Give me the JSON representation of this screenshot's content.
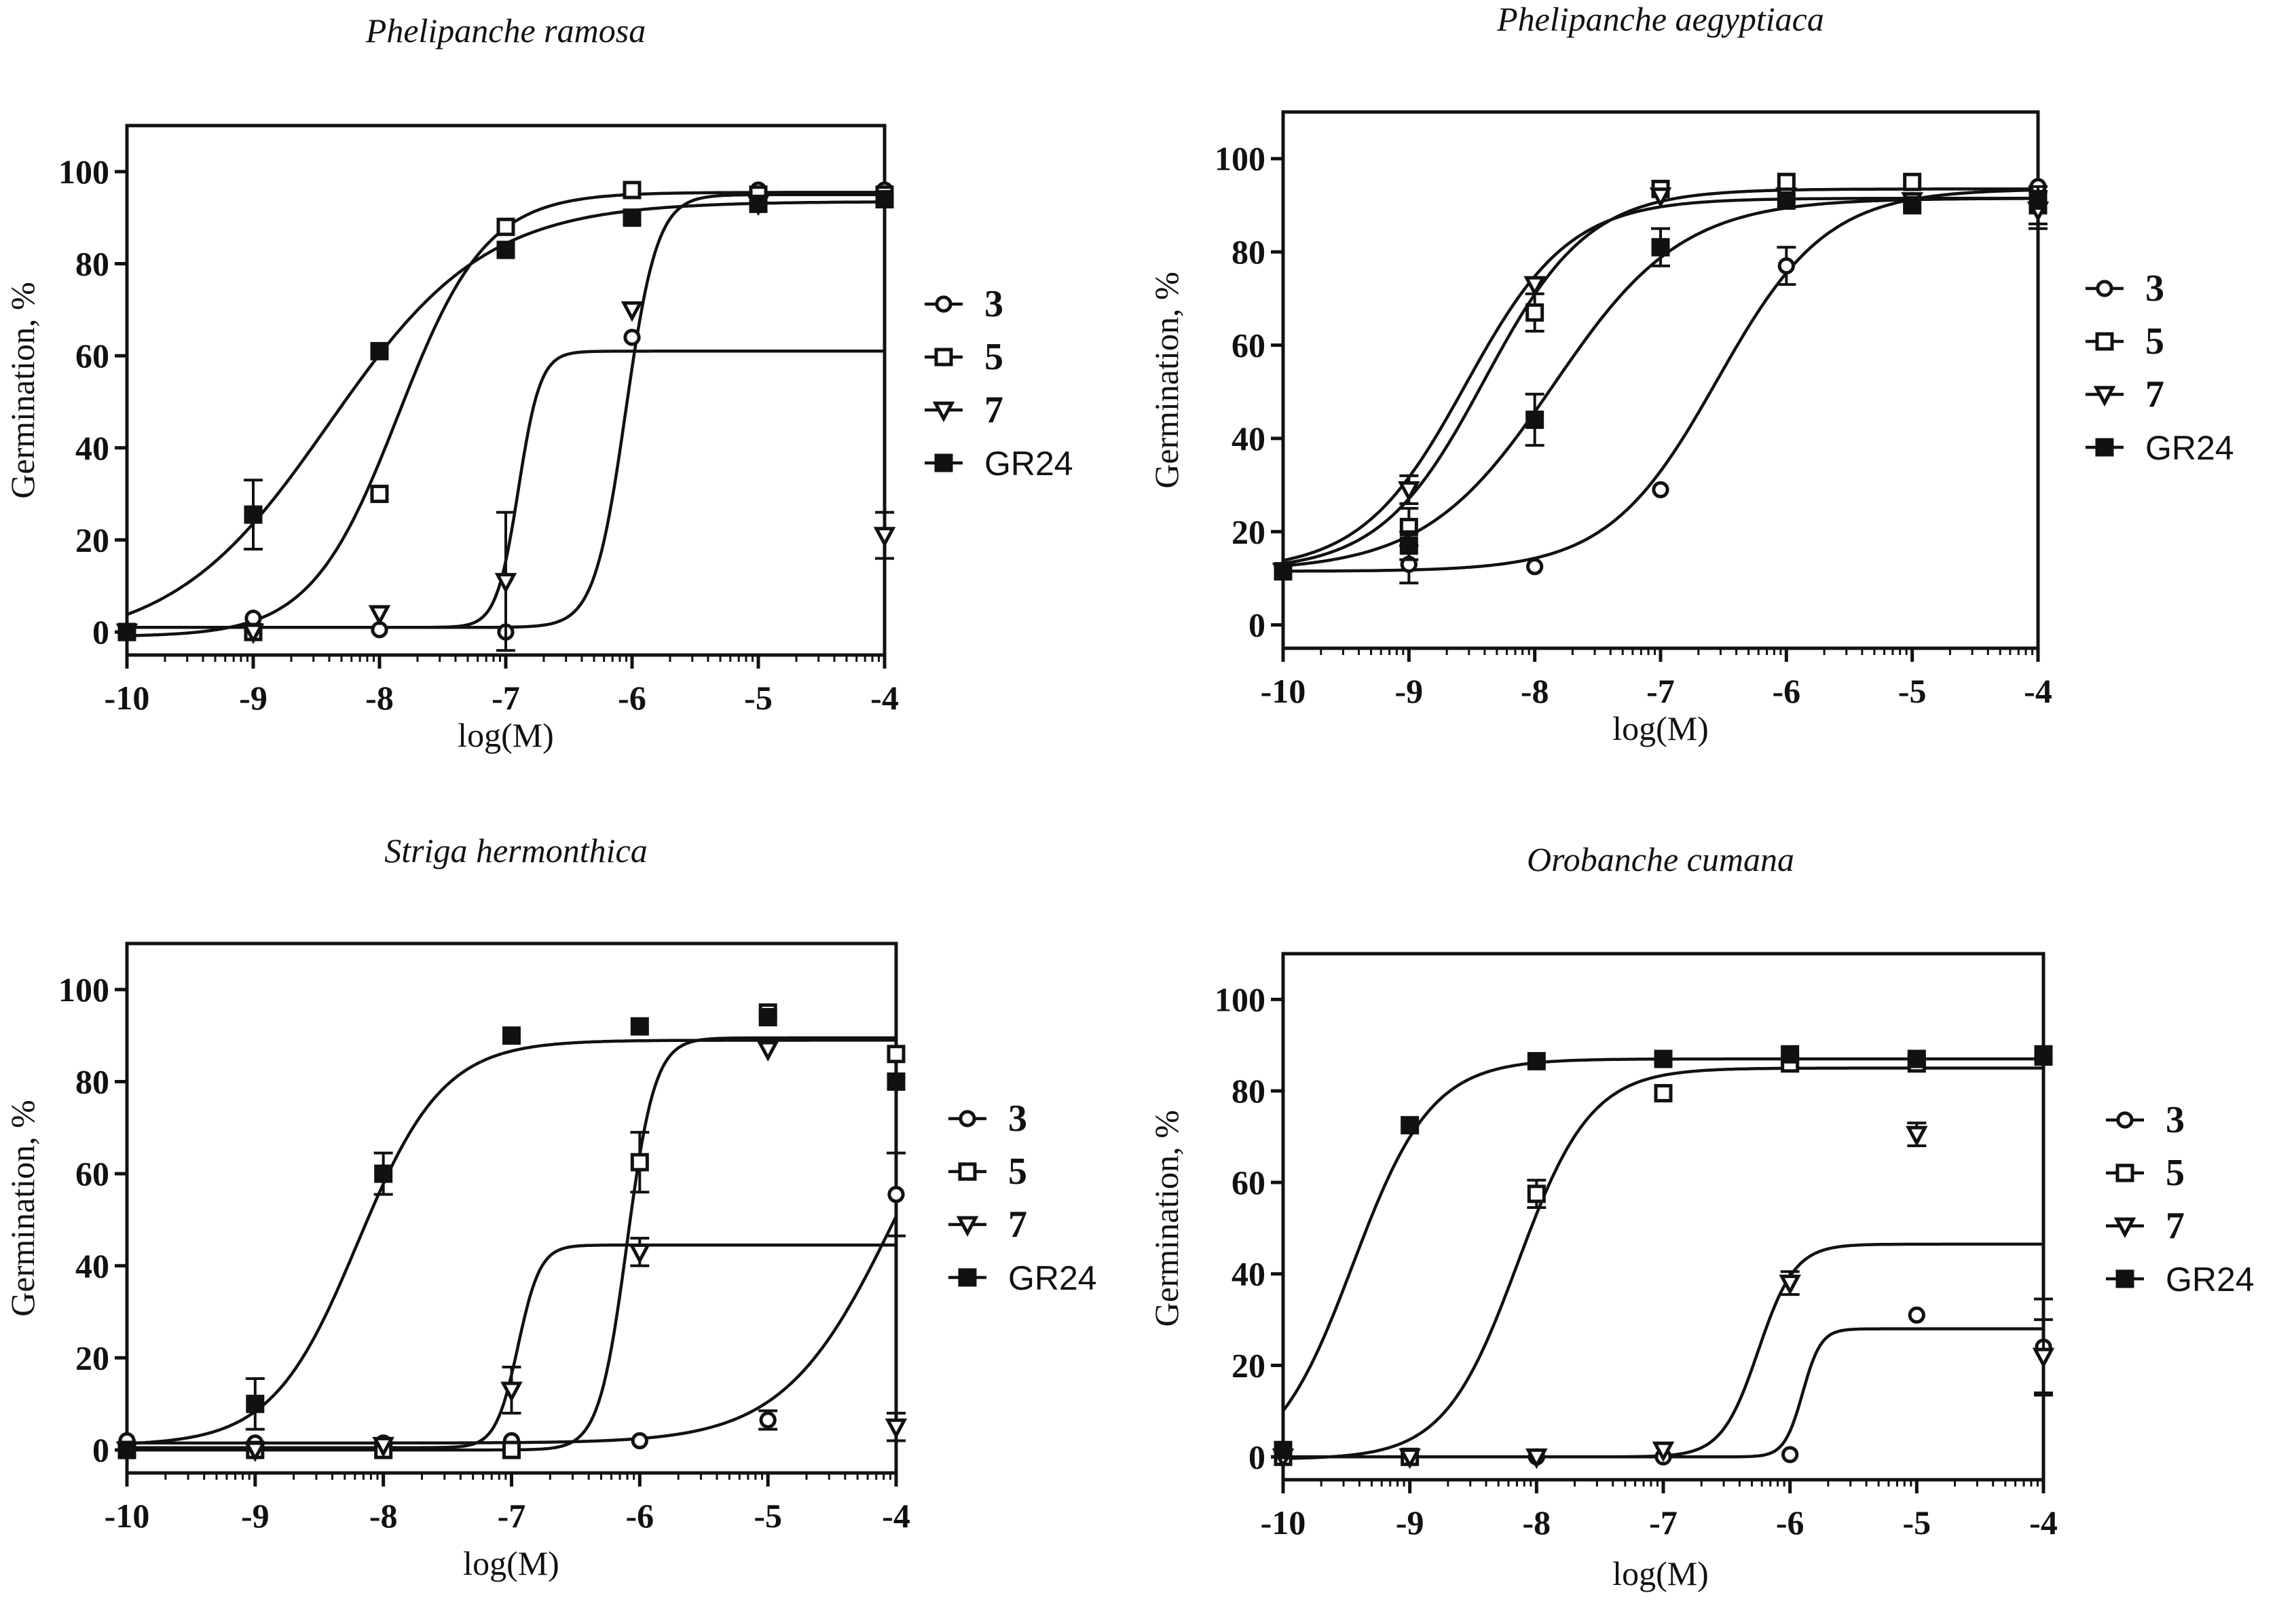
{
  "chart_data": [
    {
      "type": "scatter",
      "title": "Phelipanche ramosa",
      "xlabel": "log(M)",
      "ylabel": "Germination, %",
      "xlim": [
        -10,
        -4
      ],
      "ylim": [
        -5,
        110
      ],
      "xticks": [
        -10,
        -9,
        -8,
        -7,
        -6,
        -5,
        -4
      ],
      "yticks": [
        0,
        20,
        40,
        60,
        80,
        100
      ],
      "legend": "right",
      "series": [
        {
          "name": "3",
          "marker": "circle-open",
          "points": [
            [
              -10,
              0
            ],
            [
              -9,
              3
            ],
            [
              -8,
              0.5
            ],
            [
              -7,
              0
            ],
            [
              -6,
              64
            ],
            [
              -5,
              96
            ],
            [
              -4,
              96
            ]
          ],
          "errors": [
            0,
            0,
            0,
            0,
            0,
            0,
            0
          ],
          "fit": {
            "bottom": 1,
            "top": 61,
            "logec50": -6.9,
            "hill": 5
          }
        },
        {
          "name": "5",
          "marker": "square-open",
          "points": [
            [
              -10,
              0
            ],
            [
              -9,
              0
            ],
            [
              -8,
              30
            ],
            [
              -7,
              88
            ],
            [
              -6,
              96
            ],
            [
              -5,
              95
            ],
            [
              -4,
              95
            ]
          ],
          "errors": [
            0,
            0,
            0,
            0,
            0,
            0,
            0
          ],
          "fit": {
            "bottom": -1,
            "top": 95.5,
            "logec50": -7.85,
            "hill": 1.25
          }
        },
        {
          "name": "7",
          "marker": "triangle-down-open",
          "points": [
            [
              -10,
              0
            ],
            [
              -9,
              0
            ],
            [
              -8,
              4
            ],
            [
              -7,
              11
            ],
            [
              -6,
              70
            ],
            [
              -5,
              93
            ],
            [
              -4,
              21
            ]
          ],
          "errors": [
            0,
            0,
            0,
            15,
            0,
            0,
            5
          ],
          "fit": {
            "bottom": 1,
            "top": 95,
            "logec50": -6.05,
            "hill": 3.5
          }
        },
        {
          "name": "GR24",
          "marker": "square-filled",
          "points": [
            [
              -10,
              0
            ],
            [
              -9,
              25.5
            ],
            [
              -8,
              61
            ],
            [
              -7,
              83
            ],
            [
              -6,
              90
            ],
            [
              -5,
              93
            ],
            [
              -4,
              94
            ]
          ],
          "errors": [
            0,
            7.5,
            0,
            0,
            0,
            0,
            0
          ],
          "fit": {
            "bottom": -3,
            "top": 93.5,
            "logec50": -8.4,
            "hill": 0.7
          }
        }
      ]
    },
    {
      "type": "scatter",
      "title": "Phelipanche aegyptiaca",
      "xlabel": "log(M)",
      "ylabel": "Germination, %",
      "xlim": [
        -10,
        -4
      ],
      "ylim": [
        -5,
        110
      ],
      "xticks": [
        -10,
        -9,
        -8,
        -7,
        -6,
        -5,
        -4
      ],
      "yticks": [
        0,
        20,
        40,
        60,
        80,
        100
      ],
      "legend": "right",
      "series": [
        {
          "name": "3",
          "marker": "circle-open",
          "points": [
            [
              -10,
              11.5
            ],
            [
              -9,
              13
            ],
            [
              -8,
              12.5
            ],
            [
              -7,
              29
            ],
            [
              -6,
              77
            ],
            [
              -5,
              91
            ],
            [
              -4,
              94
            ]
          ],
          "errors": [
            0,
            4,
            0,
            0,
            4,
            0,
            0
          ],
          "fit": {
            "bottom": 11.5,
            "top": 93.5,
            "logec50": -6.55,
            "hill": 1
          }
        },
        {
          "name": "5",
          "marker": "square-open",
          "points": [
            [
              -10,
              11.5
            ],
            [
              -9,
              21
            ],
            [
              -8,
              67
            ],
            [
              -7,
              93.5
            ],
            [
              -6,
              95
            ],
            [
              -5,
              95
            ],
            [
              -4,
              90
            ]
          ],
          "errors": [
            0,
            4,
            4,
            0,
            0,
            0,
            4
          ],
          "fit": {
            "bottom": 11.5,
            "top": 93.5,
            "logec50": -8.4,
            "hill": 1.05
          }
        },
        {
          "name": "7",
          "marker": "triangle-down-open",
          "points": [
            [
              -10,
              11.5
            ],
            [
              -9,
              29
            ],
            [
              -8,
              73
            ],
            [
              -7,
              92
            ],
            [
              -6,
              92
            ],
            [
              -5,
              91
            ],
            [
              -4,
              89
            ]
          ],
          "errors": [
            0,
            3,
            0,
            0,
            0,
            0,
            4
          ],
          "fit": {
            "bottom": 11.5,
            "top": 91.5,
            "logec50": -8.55,
            "hill": 1.05
          }
        },
        {
          "name": "GR24",
          "marker": "square-filled",
          "points": [
            [
              -10,
              11.5
            ],
            [
              -9,
              17
            ],
            [
              -8,
              44
            ],
            [
              -7,
              81
            ],
            [
              -6,
              91
            ],
            [
              -5,
              90
            ],
            [
              -4,
              91
            ]
          ],
          "errors": [
            0,
            3,
            5.5,
            4,
            0,
            0,
            0
          ],
          "fit": {
            "bottom": 11.5,
            "top": 91.5,
            "logec50": -7.85,
            "hill": 0.85
          }
        }
      ]
    },
    {
      "type": "scatter",
      "title": "Striga hermonthica",
      "xlabel": "log(M)",
      "ylabel": "Germination, %",
      "xlim": [
        -10,
        -4
      ],
      "ylim": [
        -5,
        110
      ],
      "xticks": [
        -10,
        -9,
        -8,
        -7,
        -6,
        -5,
        -4
      ],
      "yticks": [
        0,
        20,
        40,
        60,
        80,
        100
      ],
      "legend": "right",
      "series": [
        {
          "name": "3",
          "marker": "circle-open",
          "points": [
            [
              -10,
              2
            ],
            [
              -9,
              1.5
            ],
            [
              -8,
              1.5
            ],
            [
              -7,
              2
            ],
            [
              -6,
              2
            ],
            [
              -5,
              6.5
            ],
            [
              -4,
              55.5
            ]
          ],
          "errors": [
            0,
            0,
            0,
            0,
            0,
            2,
            9
          ],
          "fit": {
            "bottom": 1.5,
            "top": 100,
            "logec50": -4,
            "hill": 1
          }
        },
        {
          "name": "5",
          "marker": "square-open",
          "points": [
            [
              -10,
              0
            ],
            [
              -9,
              0
            ],
            [
              -8,
              0
            ],
            [
              -7,
              0
            ],
            [
              -6,
              62.5
            ],
            [
              -5,
              95
            ],
            [
              -4,
              86
            ]
          ],
          "errors": [
            0,
            0,
            0,
            0,
            6.5,
            0,
            0
          ],
          "fit": {
            "bottom": 0,
            "top": 89.5,
            "logec50": -6.1,
            "hill": 4
          }
        },
        {
          "name": "7",
          "marker": "triangle-down-open",
          "points": [
            [
              -10,
              0
            ],
            [
              -9,
              0
            ],
            [
              -8,
              1
            ],
            [
              -7,
              13
            ],
            [
              -6,
              43
            ],
            [
              -5,
              87
            ],
            [
              -4,
              5
            ]
          ],
          "errors": [
            0,
            0,
            0,
            5,
            3,
            0,
            3
          ],
          "fit": {
            "bottom": 0.5,
            "top": 44.5,
            "logec50": -6.95,
            "hill": 5
          }
        },
        {
          "name": "GR24",
          "marker": "square-filled",
          "points": [
            [
              -10,
              0
            ],
            [
              -9,
              10
            ],
            [
              -8,
              60
            ],
            [
              -7,
              90
            ],
            [
              -6,
              92
            ],
            [
              -5,
              94
            ],
            [
              -4,
              80
            ]
          ],
          "errors": [
            0,
            5.5,
            4.5,
            0,
            0,
            0,
            0
          ],
          "fit": {
            "bottom": 1,
            "top": 89,
            "logec50": -8.2,
            "hill": 1.3
          }
        }
      ]
    },
    {
      "type": "scatter",
      "title": "Orobanche cumana",
      "xlabel": "log(M)",
      "ylabel": "Germination, %",
      "xlim": [
        -10,
        -4
      ],
      "ylim": [
        -5,
        110
      ],
      "xticks": [
        -10,
        -9,
        -8,
        -7,
        -6,
        -5,
        -4
      ],
      "yticks": [
        0,
        20,
        40,
        60,
        80,
        100
      ],
      "legend": "right",
      "series": [
        {
          "name": "3",
          "marker": "circle-open",
          "points": [
            [
              -10,
              0
            ],
            [
              -9,
              0
            ],
            [
              -8,
              0
            ],
            [
              -7,
              0
            ],
            [
              -6,
              0.5
            ],
            [
              -5,
              31
            ],
            [
              -4,
              24
            ]
          ],
          "errors": [
            0,
            0,
            0,
            0,
            0,
            0,
            10.5
          ],
          "fit": {
            "bottom": 0,
            "top": 28,
            "logec50": -5.9,
            "hill": 6
          }
        },
        {
          "name": "5",
          "marker": "square-open",
          "points": [
            [
              -10,
              0
            ],
            [
              -9,
              0
            ],
            [
              -8,
              57.5
            ],
            [
              -7,
              79.5
            ],
            [
              -6,
              86
            ],
            [
              -5,
              86
            ],
            [
              -4,
              87.5
            ]
          ],
          "errors": [
            0,
            0,
            3,
            0,
            0,
            0,
            0
          ],
          "fit": {
            "bottom": -0.5,
            "top": 85,
            "logec50": -8.15,
            "hill": 1.5
          }
        },
        {
          "name": "7",
          "marker": "triangle-down-open",
          "points": [
            [
              -10,
              0
            ],
            [
              -9,
              0
            ],
            [
              -8,
              0
            ],
            [
              -7,
              1.5
            ],
            [
              -6,
              38
            ],
            [
              -5,
              70.5
            ],
            [
              -4,
              22
            ]
          ],
          "errors": [
            0,
            0,
            0,
            0,
            2.5,
            2.5,
            8
          ],
          "fit": {
            "bottom": 0,
            "top": 46.5,
            "logec50": -6.25,
            "hill": 3
          }
        },
        {
          "name": "GR24",
          "marker": "square-filled",
          "points": [
            [
              -10,
              1.5
            ],
            [
              -9,
              72.5
            ],
            [
              -8,
              86.5
            ],
            [
              -7,
              87
            ],
            [
              -6,
              88
            ],
            [
              -5,
              87
            ],
            [
              -4,
              88
            ]
          ],
          "errors": [
            0,
            0,
            0,
            0,
            0,
            0,
            0
          ],
          "fit": {
            "bottom": -3,
            "top": 87,
            "logec50": -9.45,
            "hill": 1.4
          }
        }
      ]
    }
  ]
}
